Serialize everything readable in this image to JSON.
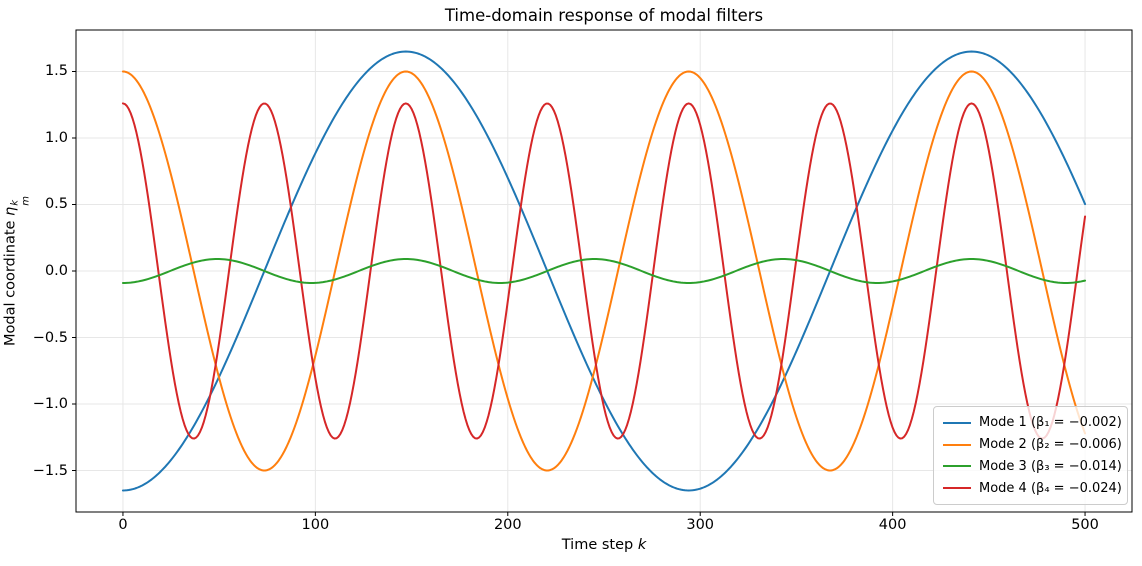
{
  "chart_data": {
    "type": "line",
    "title": "Time-domain response of modal filters",
    "xlabel_text": "Time step ",
    "xlabel_var": "k",
    "ylabel_text": "Modal coordinate ",
    "ylabel_var": "η",
    "ylabel_sup": "k",
    "ylabel_sub": "m",
    "xticks": [
      0,
      100,
      200,
      300,
      400,
      500
    ],
    "yticks": [
      1.5,
      1.0,
      0.5,
      0.0,
      -0.5,
      -1.0,
      -1.5
    ],
    "xlim": [
      -24.4,
      524.4
    ],
    "ylim": [
      -1.812,
      1.812
    ],
    "grid": true,
    "legend_location": "lower right",
    "x_sampling": {
      "start": 0,
      "end": 500,
      "step": 1
    },
    "model": "value(k) = sign × amplitude × cos(2π·k / period)",
    "series": [
      {
        "label": "Mode 1 (β₁ = −0.002)",
        "color": "#1f77b4",
        "amplitude": 1.65,
        "period": 294,
        "sign": -1
      },
      {
        "label": "Mode 2 (β₂ = −0.006)",
        "color": "#ff7f0e",
        "amplitude": 1.5,
        "period": 147,
        "sign": 1
      },
      {
        "label": "Mode 3 (β₃ = −0.014)",
        "color": "#2ca02c",
        "amplitude": 0.09,
        "period": 98,
        "sign": -1
      },
      {
        "label": "Mode 4 (β₄ = −0.024)",
        "color": "#d62728",
        "amplitude": 1.26,
        "period": 73.5,
        "sign": 1
      }
    ]
  }
}
